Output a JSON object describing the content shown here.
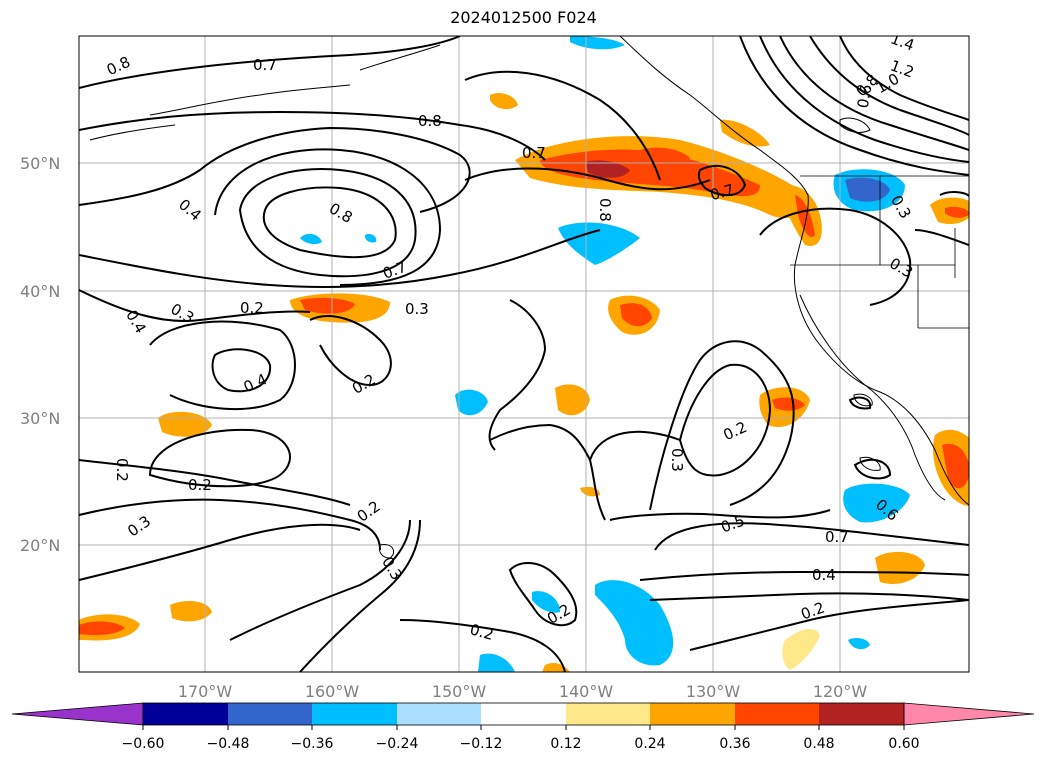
{
  "title": "2024012500 F024",
  "map": {
    "lat_labels": [
      "50°N",
      "40°N",
      "30°N",
      "20°N"
    ],
    "lon_labels": [
      "170°W",
      "160°W",
      "150°W",
      "140°W",
      "130°W",
      "120°W"
    ],
    "contour_labels": [
      "0.8",
      "0.7",
      "0.8",
      "0.7",
      "0.8",
      "0.4",
      "0.8",
      "0.7",
      "0.2",
      "0.3",
      "0.3",
      "0.4",
      "0.4",
      "0.2",
      "0.2",
      "0.2",
      "0.3",
      "0.2",
      "0.3",
      "0.2",
      "0.2",
      "0.3",
      "0.2",
      "0.5",
      "0.6",
      "0.7",
      "0.4",
      "0.2",
      "0.7",
      "0.3",
      "0.3",
      "1.4",
      "1.2",
      "1.0",
      "0.8",
      "0.6"
    ]
  },
  "colorbar": {
    "ticks": [
      "−0.60",
      "−0.48",
      "−0.36",
      "−0.24",
      "−0.12",
      "0.12",
      "0.24",
      "0.36",
      "0.48",
      "0.60"
    ],
    "colors": {
      "under": "#9933cc",
      "c1": "#000099",
      "c2": "#3366cc",
      "c3": "#00bfff",
      "c4": "#aadfff",
      "c5": "#ffffff",
      "c6": "#ffe88a",
      "c7": "#ffa500",
      "c8": "#ff4500",
      "c9": "#b22222",
      "over": "#ff88aa"
    }
  }
}
